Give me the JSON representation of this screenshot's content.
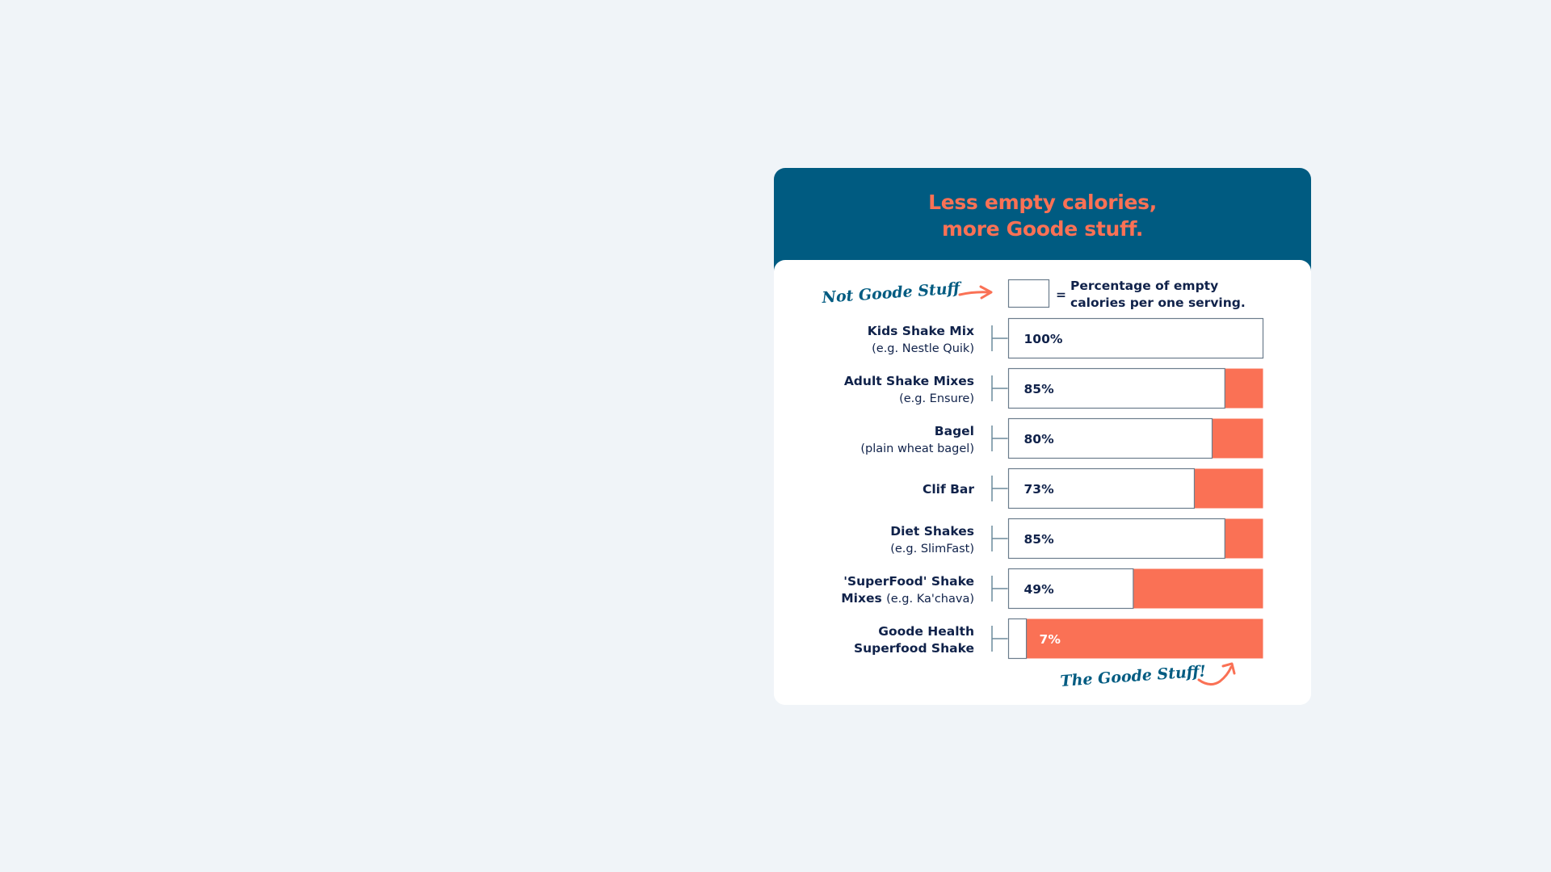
{
  "card": {
    "title_line1": "Less empty calories,",
    "title_line2": "more Goode stuff.",
    "header_color": "#005b81",
    "accent_color": "#fa7155"
  },
  "legend": {
    "annotation": "Not Goode Stuff",
    "equals": "=",
    "text_line1": "Percentage of empty",
    "text_line2": "calories per one serving."
  },
  "footer_annotation": "The Goode Stuff!",
  "chart_data": {
    "type": "bar",
    "orientation": "horizontal",
    "stacked_to": 100,
    "categories": [
      {
        "name": "Kids Shake Mix",
        "sub": "(e.g. Nestle Quik)"
      },
      {
        "name": "Adult Shake Mixes",
        "sub": "(e.g. Ensure)"
      },
      {
        "name": "Bagel",
        "sub": "(plain wheat bagel)"
      },
      {
        "name": "Clif Bar",
        "sub": ""
      },
      {
        "name": "Diet Shakes",
        "sub": "(e.g. SlimFast)"
      },
      {
        "name": "'SuperFood' Shake",
        "sub_bold": "Mixes",
        "sub": "(e.g. Ka'chava)"
      },
      {
        "name": "Goode Health",
        "sub_bold": "Superfood Shake",
        "sub": ""
      }
    ],
    "values": [
      100,
      85,
      80,
      73,
      85,
      49,
      7
    ],
    "value_labels": [
      "100%",
      "85%",
      "80%",
      "73%",
      "85%",
      "49%",
      "7%"
    ],
    "empty_color": "#ffffff",
    "remainder_color": "#fa7155",
    "xlim": [
      0,
      100
    ]
  }
}
